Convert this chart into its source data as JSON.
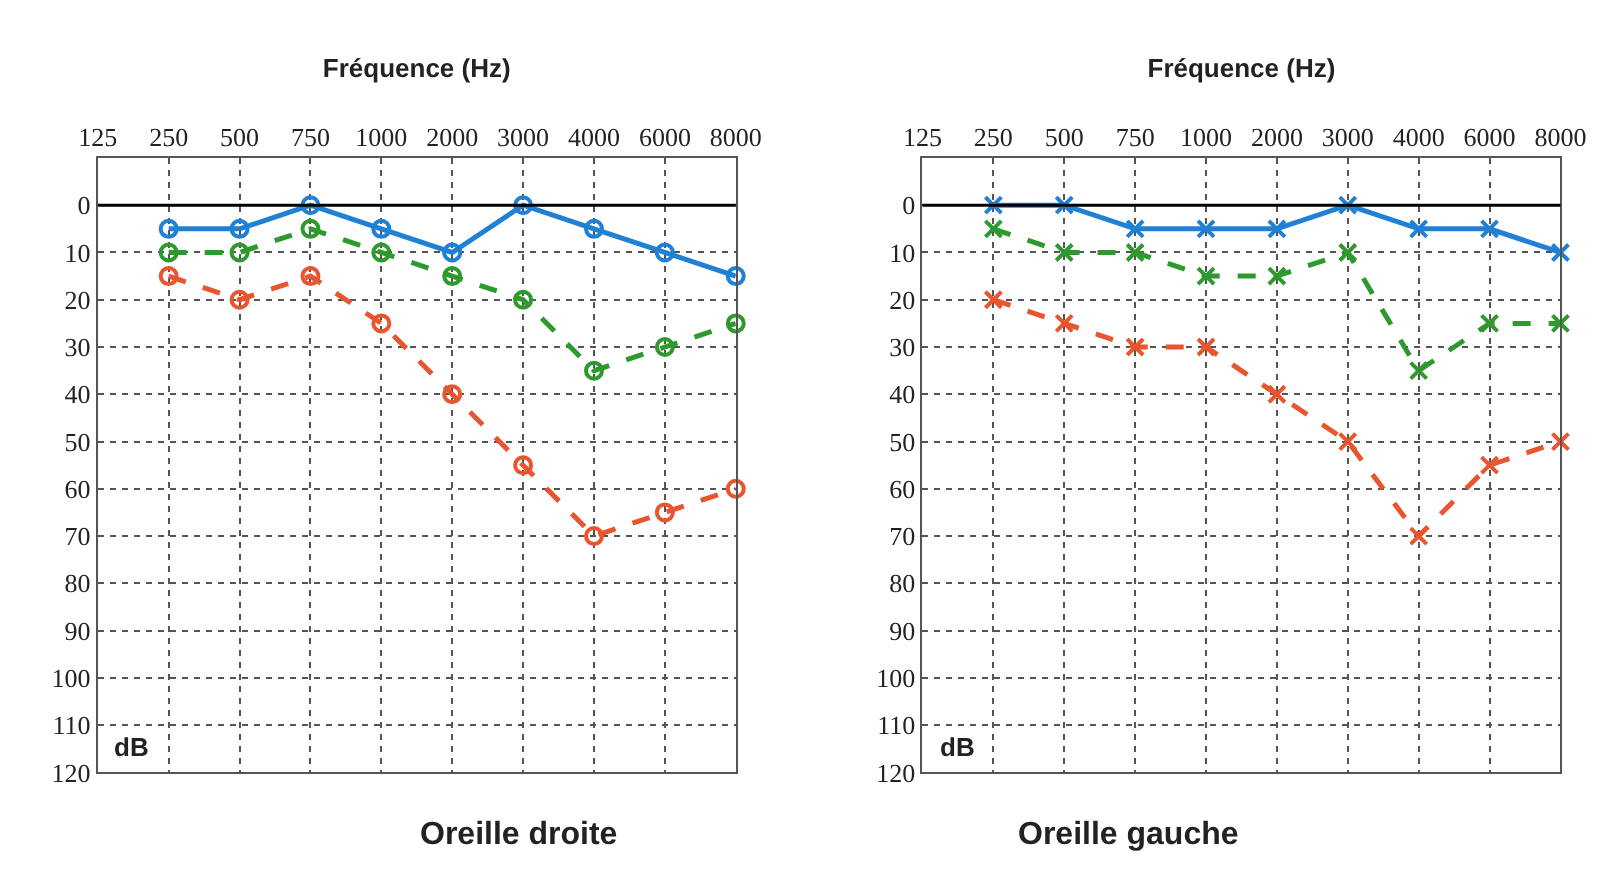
{
  "chart_data": [
    {
      "type": "line",
      "title": "Oreille droite",
      "xlabel": "Fréquence (Hz)",
      "annotations": [
        "dB"
      ],
      "categories": [
        "125",
        "250",
        "500",
        "750",
        "1000",
        "2000",
        "3000",
        "4000",
        "6000",
        "8000"
      ],
      "ylim": [
        120,
        -10
      ],
      "yticks": [
        0,
        10,
        20,
        30,
        40,
        50,
        60,
        70,
        80,
        90,
        100,
        110,
        120
      ],
      "grid": true,
      "marker": "circle",
      "ref_lines": [
        {
          "axis": "y",
          "value": 0,
          "color": "#000000"
        }
      ],
      "series": [
        {
          "color": "#1f80d6",
          "line_style": "solid",
          "values": [
            null,
            5,
            5,
            0,
            5,
            10,
            0,
            5,
            10,
            15
          ]
        },
        {
          "color": "#2e9a2e",
          "line_style": "dashed",
          "values": [
            null,
            10,
            10,
            5,
            10,
            15,
            20,
            35,
            30,
            25
          ]
        },
        {
          "color": "#e8552e",
          "line_style": "dashed",
          "values": [
            null,
            15,
            20,
            15,
            25,
            40,
            55,
            70,
            65,
            60
          ]
        }
      ]
    },
    {
      "type": "line",
      "title": "Oreille gauche",
      "xlabel": "Fréquence (Hz)",
      "annotations": [
        "dB"
      ],
      "categories": [
        "125",
        "250",
        "500",
        "750",
        "1000",
        "2000",
        "3000",
        "4000",
        "6000",
        "8000"
      ],
      "ylim": [
        120,
        -10
      ],
      "yticks": [
        0,
        10,
        20,
        30,
        40,
        50,
        60,
        70,
        80,
        90,
        100,
        110,
        120
      ],
      "grid": true,
      "marker": "cross",
      "ref_lines": [
        {
          "axis": "y",
          "value": 0,
          "color": "#000000"
        }
      ],
      "series": [
        {
          "color": "#1f80d6",
          "line_style": "solid",
          "values": [
            null,
            0,
            0,
            5,
            5,
            5,
            0,
            5,
            5,
            10
          ]
        },
        {
          "color": "#2e9a2e",
          "line_style": "dashed",
          "values": [
            null,
            5,
            10,
            10,
            15,
            15,
            10,
            35,
            25,
            25
          ]
        },
        {
          "color": "#e8552e",
          "line_style": "dashed",
          "values": [
            null,
            20,
            25,
            30,
            30,
            40,
            50,
            70,
            55,
            50
          ]
        }
      ]
    }
  ]
}
